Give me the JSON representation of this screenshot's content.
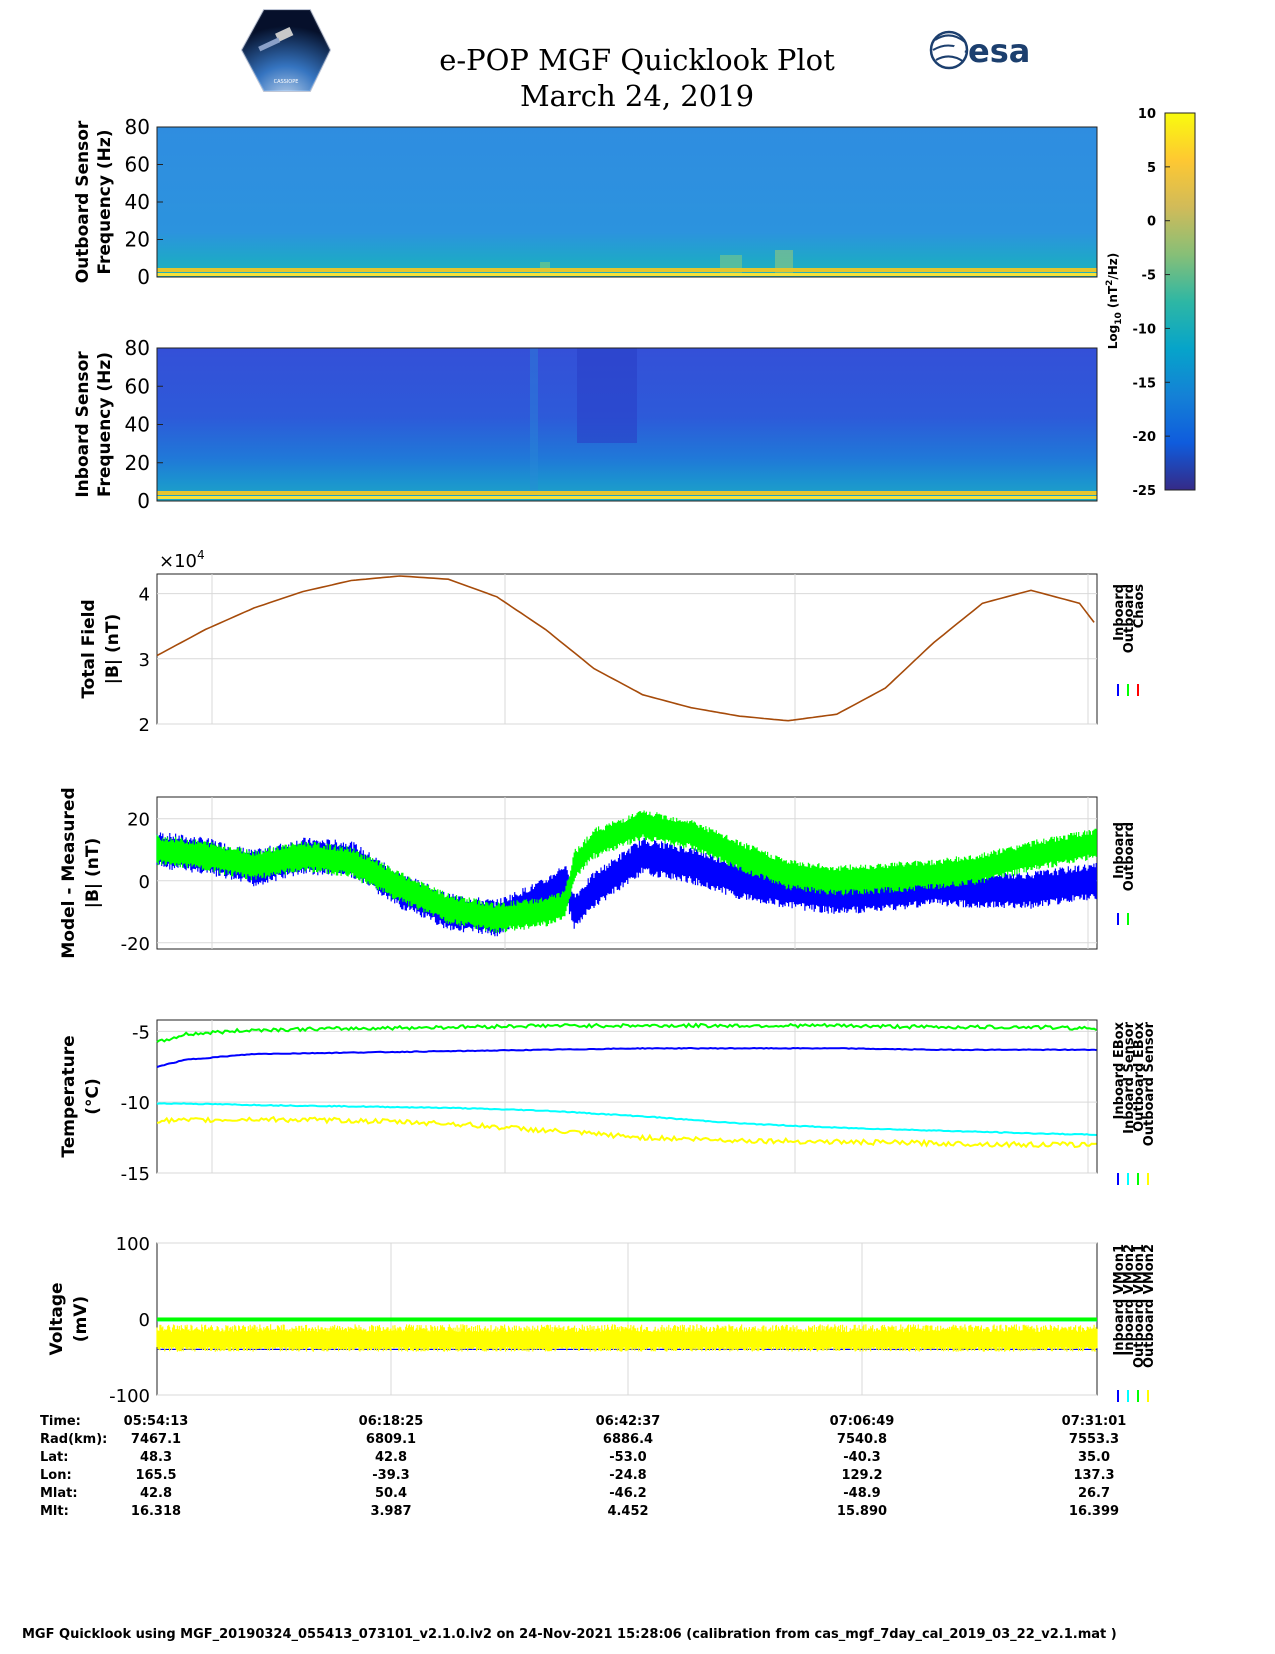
{
  "title": {
    "line1": "e-POP MGF Quicklook Plot",
    "line2": "March 24, 2019"
  },
  "logos": {
    "cassiope_text": "CASSIOPE",
    "esa_text": "esa"
  },
  "colors": {
    "inboard": "#0000ff",
    "outboard": "#00ff00",
    "chaos": "#ff0000",
    "cyan": "#00ffff",
    "yellow": "#ffff00",
    "grid": "#d9d9d9"
  },
  "chart_data": [
    {
      "type": "heatmap",
      "name": "Outboard spectrogram",
      "ylabel": [
        "Outboard Sensor",
        "Frequency (Hz)"
      ],
      "yticks": [
        "0",
        "20",
        "40",
        "60",
        "80"
      ],
      "ylim": [
        0,
        80
      ],
      "summary": "Mostly uniform power around log10 -13 with a bright (log10 ~ +5) band near 0-3 Hz"
    },
    {
      "type": "heatmap",
      "name": "Inboard spectrogram",
      "ylabel": [
        "Inboard Sensor",
        "Frequency (Hz)"
      ],
      "yticks": [
        "0",
        "20",
        "40",
        "60",
        "80"
      ],
      "ylim": [
        0,
        80
      ],
      "summary": "Lower power around log10 -18, elevated below 25 Hz, bright band near 0-3 Hz"
    },
    {
      "type": "colorbar",
      "name": "Spectral power colorbar",
      "label": "Log10 (nT2/Hz)",
      "label_parts": {
        "log": "Log",
        "log_sub": "10",
        "unit_pre": " (nT",
        "unit_sup": "2",
        "unit_post": "/Hz)"
      },
      "ticks": [
        "10",
        "5",
        "0",
        "-5",
        "-10",
        "-15",
        "-20",
        "-25"
      ],
      "range": [
        -25,
        10
      ],
      "colormap": "parula"
    },
    {
      "type": "line",
      "name": "Total Field",
      "ylabel": [
        "Total Field",
        "|B| (nT)"
      ],
      "ylim": [
        2,
        4.3
      ],
      "yticks": [
        "2",
        "3",
        "4"
      ],
      "exponent": "×10",
      "exponent_power": "4",
      "x_minutes": [
        0,
        5,
        10,
        15,
        20,
        25,
        30,
        35,
        40,
        45,
        50,
        55,
        60,
        65,
        70,
        75,
        80,
        85,
        90,
        95,
        96.8
      ],
      "series": [
        {
          "name": "Outboard/Chaos",
          "color": "#a64b0a",
          "values": [
            3.05,
            3.45,
            3.78,
            4.03,
            4.2,
            4.27,
            4.22,
            3.95,
            3.45,
            2.85,
            2.45,
            2.25,
            2.12,
            2.05,
            2.15,
            2.55,
            3.25,
            3.85,
            4.05,
            3.85,
            3.5
          ]
        }
      ],
      "legend": [
        "Inboard",
        "Outboard",
        "Chaos"
      ]
    },
    {
      "type": "line",
      "name": "Model - Measured",
      "ylabel": [
        "Model - Measured",
        "|B| (nT)"
      ],
      "ylim": [
        -22,
        27
      ],
      "yticks": [
        "-20",
        "0",
        "20"
      ],
      "x_minutes": [
        0,
        5,
        10,
        15,
        20,
        25,
        30,
        35,
        40,
        42,
        43,
        45,
        50,
        55,
        60,
        65,
        70,
        75,
        80,
        85,
        90,
        96.8
      ],
      "series": [
        {
          "name": "Inboard",
          "color": "#0000ff",
          "spread": 12,
          "values": [
            10,
            8,
            4,
            8,
            7,
            -3,
            -10,
            -12,
            -5,
            0,
            -10,
            -3,
            8,
            5,
            0,
            -3,
            -5,
            -4,
            -2,
            -3,
            -3,
            0
          ]
        },
        {
          "name": "Outboard",
          "color": "#00ff00",
          "spread": 10,
          "values": [
            10,
            8,
            5,
            8,
            6,
            -2,
            -9,
            -12,
            -10,
            -8,
            5,
            12,
            18,
            15,
            8,
            2,
            0,
            1,
            2,
            4,
            8,
            12
          ]
        }
      ],
      "legend": [
        "Inboard",
        "Outboard"
      ]
    },
    {
      "type": "line",
      "name": "Temperature",
      "ylabel": [
        "Temperature",
        "(°C)"
      ],
      "ylim": [
        -15,
        -4.2
      ],
      "yticks": [
        "-5",
        "-10",
        "-15"
      ],
      "x_minutes": [
        0,
        3,
        10,
        20,
        30,
        40,
        50,
        60,
        70,
        80,
        90,
        96.8
      ],
      "series": [
        {
          "name": "Inboard EBox",
          "color": "#0000ff",
          "values": [
            -7.5,
            -7.0,
            -6.6,
            -6.5,
            -6.4,
            -6.3,
            -6.2,
            -6.2,
            -6.2,
            -6.3,
            -6.3,
            -6.3
          ]
        },
        {
          "name": "Inboard Sensor",
          "color": "#00ffff",
          "values": [
            -10.1,
            -10.1,
            -10.2,
            -10.3,
            -10.4,
            -10.6,
            -11.0,
            -11.5,
            -11.8,
            -12.0,
            -12.2,
            -12.3
          ]
        },
        {
          "name": "Outboard EBox",
          "color": "#00ff00",
          "values": [
            -5.8,
            -5.2,
            -4.9,
            -4.8,
            -4.7,
            -4.6,
            -4.6,
            -4.6,
            -4.6,
            -4.7,
            -4.7,
            -4.8
          ]
        },
        {
          "name": "Outboard Sensor",
          "color": "#ffff00",
          "values": [
            -11.3,
            -11.3,
            -11.2,
            -11.3,
            -11.5,
            -12.0,
            -12.5,
            -12.7,
            -12.8,
            -12.9,
            -13.0,
            -13.0
          ]
        }
      ],
      "legend": [
        "Inboard EBox",
        "Inboard Sensor",
        "Outboard EBox",
        "Outboard Sensor"
      ]
    },
    {
      "type": "line",
      "name": "Voltage",
      "ylabel": [
        "Voltage",
        "(mV)"
      ],
      "ylim": [
        -100,
        100
      ],
      "yticks": [
        "100",
        "0",
        "-100"
      ],
      "series": [
        {
          "name": "Inboard VMon1",
          "color": "#0000ff",
          "level": -40
        },
        {
          "name": "Inboard VMon2",
          "color": "#00ffff",
          "level": -2
        },
        {
          "name": "Outboard VMon1",
          "color": "#00ff00",
          "level": 0
        },
        {
          "name": "Outboard VMon2",
          "color": "#ffff00",
          "level": -25
        }
      ],
      "legend": [
        "Inboard VMon1",
        "Inboard VMon2",
        "Outboard VMon1",
        "Outboard VMon2"
      ]
    }
  ],
  "ephemeris": {
    "labels": [
      "Time:",
      "Rad(km):",
      "Lat:",
      "Lon:",
      "Mlat:",
      "Mlt:"
    ],
    "columns": [
      [
        "05:54:13",
        "7467.1",
        "48.3",
        "165.5",
        "42.8",
        "16.318"
      ],
      [
        "06:18:25",
        "6809.1",
        "42.8",
        "-39.3",
        "50.4",
        "3.987"
      ],
      [
        "06:42:37",
        "6886.4",
        "-53.0",
        "-24.8",
        "-46.2",
        "4.452"
      ],
      [
        "07:06:49",
        "7540.8",
        "-40.3",
        "129.2",
        "-48.9",
        "15.890"
      ],
      [
        "07:31:01",
        "7553.3",
        "35.0",
        "137.3",
        "26.7",
        "16.399"
      ]
    ]
  },
  "footer": "MGF Quicklook using MGF_20190324_055413_073101_v2.1.0.lv2 on 24-Nov-2021 15:28:06 (calibration from cas_mgf_7day_cal_2019_03_22_v2.1.mat )"
}
